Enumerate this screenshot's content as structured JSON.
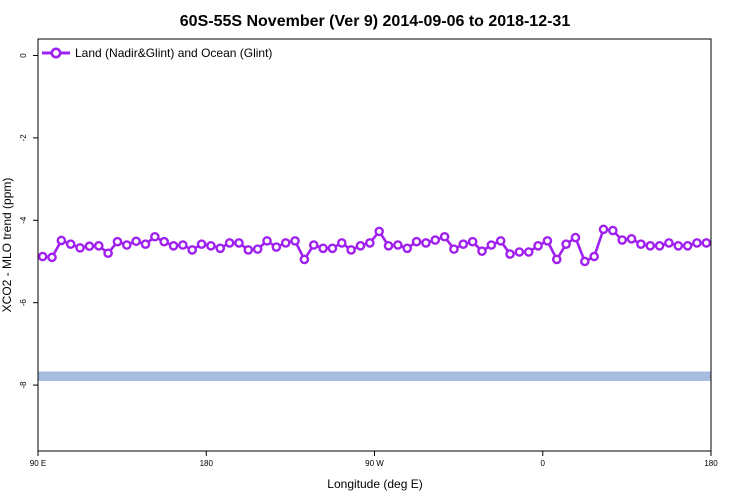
{
  "chart_data": {
    "type": "line",
    "title": "60S-55S November (Ver 9)   2014-09-06 to 2018-12-31",
    "xlabel": "Longitude (deg E)",
    "ylabel": "XCO2 - MLO trend (ppm)",
    "xlim": [
      90,
      450
    ],
    "ylim": [
      -9.6,
      0.4
    ],
    "x_ticks": [
      {
        "value": 90,
        "label": "90 E"
      },
      {
        "value": 180,
        "label": "180"
      },
      {
        "value": 270,
        "label": "90 W"
      },
      {
        "value": 360,
        "label": "0"
      },
      {
        "value": 450,
        "label": "180"
      }
    ],
    "y_ticks": [
      {
        "value": 0,
        "label": "0"
      },
      {
        "value": -2,
        "label": "-2"
      },
      {
        "value": -4,
        "label": "-4"
      },
      {
        "value": -6,
        "label": "-6"
      },
      {
        "value": -8,
        "label": "-8"
      }
    ],
    "legend_position": "top-left",
    "grid": false,
    "band": {
      "y_min": -7.9,
      "y_max": -7.67,
      "color": "#a7bde0"
    },
    "series": [
      {
        "name": "Land (Nadir&Glint) and Ocean (Glint)",
        "color": "#a020f0",
        "x": [
          92.5,
          97.5,
          102.5,
          107.5,
          112.5,
          117.5,
          122.5,
          127.5,
          132.5,
          137.5,
          142.5,
          147.5,
          152.5,
          157.5,
          162.5,
          167.5,
          172.5,
          177.5,
          182.5,
          187.5,
          192.5,
          197.5,
          202.5,
          207.5,
          212.5,
          217.5,
          222.5,
          227.5,
          232.5,
          237.5,
          242.5,
          247.5,
          252.5,
          257.5,
          262.5,
          267.5,
          272.5,
          277.5,
          282.5,
          287.5,
          292.5,
          297.5,
          302.5,
          307.5,
          312.5,
          317.5,
          322.5,
          327.5,
          332.5,
          337.5,
          342.5,
          347.5,
          352.5,
          357.5,
          362.5,
          367.5,
          372.5,
          377.5,
          382.5,
          387.5,
          392.5,
          397.5,
          402.5,
          407.5,
          412.5,
          417.5,
          422.5,
          427.5,
          432.5,
          437.5,
          442.5,
          447.5
        ],
        "y": [
          -4.88,
          -4.9,
          -4.49,
          -4.58,
          -4.67,
          -4.63,
          -4.62,
          -4.8,
          -4.52,
          -4.6,
          -4.51,
          -4.58,
          -4.4,
          -4.52,
          -4.62,
          -4.6,
          -4.72,
          -4.58,
          -4.62,
          -4.68,
          -4.55,
          -4.55,
          -4.72,
          -4.7,
          -4.5,
          -4.65,
          -4.55,
          -4.5,
          -4.95,
          -4.6,
          -4.68,
          -4.68,
          -4.55,
          -4.72,
          -4.62,
          -4.55,
          -4.27,
          -4.62,
          -4.6,
          -4.68,
          -4.52,
          -4.55,
          -4.48,
          -4.4,
          -4.7,
          -4.58,
          -4.52,
          -4.75,
          -4.6,
          -4.5,
          -4.82,
          -4.77,
          -4.77,
          -4.62,
          -4.5,
          -4.95,
          -4.58,
          -4.42,
          -5.0,
          -4.88,
          -4.22,
          -4.25,
          -4.48,
          -4.45,
          -4.58,
          -4.62,
          -4.62,
          -4.55,
          -4.62,
          -4.62,
          -4.55,
          -4.55
        ]
      }
    ]
  }
}
